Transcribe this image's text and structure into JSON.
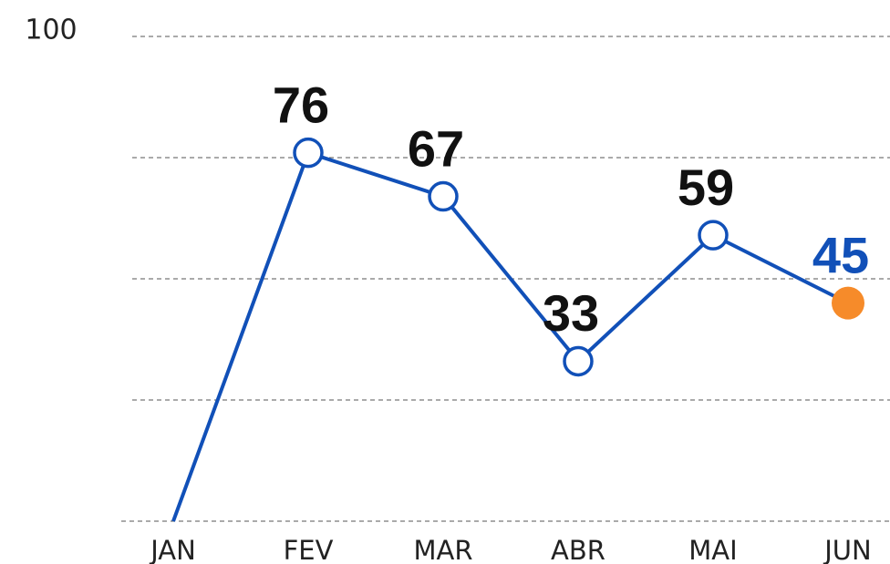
{
  "chart_data": {
    "type": "line",
    "categories": [
      "JAN",
      "FEV",
      "MAR",
      "ABR",
      "MAI",
      "JUN"
    ],
    "values": [
      0,
      76,
      67,
      33,
      59,
      45
    ],
    "value_labels": [
      null,
      "76",
      "67",
      "33",
      "59",
      "45"
    ],
    "color": "#1150b8",
    "point_colors": [
      null,
      "#ffffff",
      "#ffffff",
      "#ffffff",
      "#ffffff",
      "#f68b2a"
    ],
    "label_colors": [
      null,
      "#111111",
      "#111111",
      "#111111",
      "#111111",
      "#1150b8"
    ],
    "ylim": [
      0,
      100
    ],
    "yticks": [
      0,
      25,
      50,
      75,
      100
    ],
    "ylabels": [
      100
    ],
    "grid": true
  }
}
